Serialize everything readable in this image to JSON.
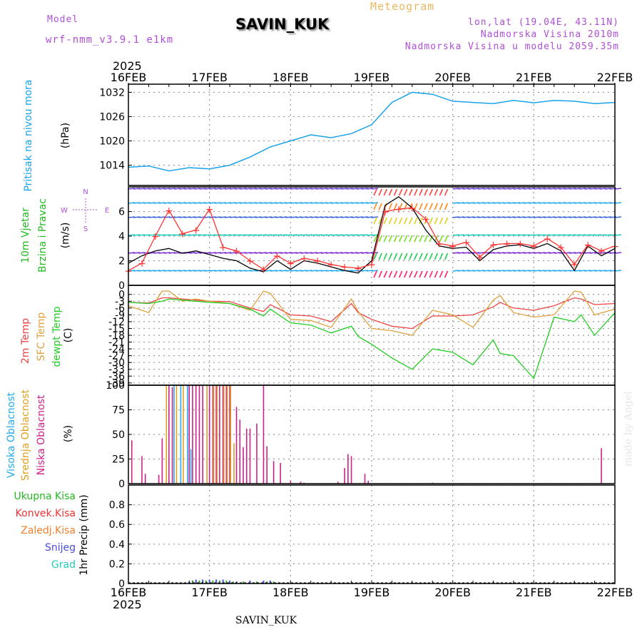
{
  "header": {
    "model_label": "Model",
    "model_version": "wrf-nmm_v3.9.1 e1km",
    "station": "SAVIN_KUK",
    "product": "Meteogram",
    "coords": "lon,lat (19.04E, 43.11N)",
    "elevation": "Nadmorska Visina 2010m",
    "model_elevation": "Nadmorska Visina u modelu 2059.35m",
    "year_top": "2025",
    "year_bottom": "2025"
  },
  "footer": {
    "station": "SAVIN_KUK",
    "made_by": "made by Angel"
  },
  "colors": {
    "pressure": "#1aa3ea",
    "wind_speed": "#000000",
    "gust": "#ff3333",
    "temp2m": "#ee4444",
    "sfc_temp": "#e0a040",
    "dewpt": "#22cc22",
    "high_cloud": "#22aaee",
    "mid_cloud": "#e0a020",
    "low_cloud": "#cc2288",
    "grid": "#999999"
  },
  "chart_data": [
    {
      "type": "line",
      "panel": "pressure",
      "x_dates": [
        "16FEB",
        "17FEB",
        "18FEB",
        "19FEB",
        "20FEB",
        "21FEB",
        "22FEB"
      ],
      "ylabel_colored": "Pritisak na nivou mora",
      "ylabel_unit": "(hPa)",
      "ylim": [
        1009,
        1034
      ],
      "yticks": [
        1014,
        1020,
        1026,
        1032
      ],
      "grid": true,
      "x_hours": [
        0,
        6,
        12,
        18,
        24,
        30,
        36,
        42,
        48,
        54,
        60,
        66,
        72,
        78,
        84,
        90,
        96,
        102,
        108,
        114,
        120,
        126,
        132,
        138,
        144
      ],
      "values": [
        1013.5,
        1013.8,
        1012.6,
        1013.4,
        1013.1,
        1014.0,
        1016.0,
        1018.5,
        1020.0,
        1021.5,
        1020.8,
        1021.8,
        1024.0,
        1029.5,
        1032.0,
        1031.5,
        1029.8,
        1029.5,
        1029.2,
        1030.0,
        1029.4,
        1030.0,
        1029.8,
        1029.2,
        1029.5
      ]
    },
    {
      "type": "line",
      "panel": "wind",
      "ylabel_colored_1": "10m Vjetar",
      "ylabel_colored_2": "Brzina i Pravac",
      "ylabel_unit": "(m/s)",
      "compass": [
        "N",
        "W",
        "E",
        "S"
      ],
      "ylim": [
        0,
        8
      ],
      "yticks": [
        0,
        2,
        4,
        6
      ],
      "grid": true,
      "series": [
        {
          "name": "",
          "x_hours": [
            0,
            4,
            8,
            12,
            16,
            20,
            24,
            28,
            32,
            36,
            40,
            44,
            48,
            52,
            56,
            60,
            64,
            68,
            72,
            76,
            80,
            84,
            88,
            92,
            96,
            100,
            104,
            108,
            112,
            116,
            120,
            124,
            128,
            132,
            136,
            140,
            144
          ],
          "values": [
            1.8,
            2.4,
            2.8,
            3.0,
            2.6,
            2.8,
            2.5,
            2.2,
            2.0,
            1.4,
            1.1,
            2.0,
            1.3,
            2.0,
            1.8,
            1.5,
            1.2,
            1.0,
            2.0,
            6.5,
            7.2,
            6.3,
            4.5,
            3.2,
            3.0,
            3.1,
            2.0,
            2.9,
            3.2,
            3.3,
            3.0,
            3.4,
            2.8,
            1.2,
            3.2,
            2.4,
            3.0
          ]
        },
        {
          "name": "",
          "x_hours": [
            0,
            4,
            8,
            12,
            16,
            20,
            24,
            28,
            32,
            36,
            40,
            44,
            48,
            52,
            56,
            60,
            64,
            68,
            72,
            76,
            80,
            84,
            88,
            92,
            96,
            100,
            104,
            108,
            112,
            116,
            120,
            124,
            128,
            132,
            136,
            140,
            144
          ],
          "values": [
            1.2,
            1.8,
            4.0,
            6.1,
            4.2,
            4.5,
            6.2,
            3.1,
            2.8,
            2.0,
            1.3,
            2.4,
            1.8,
            2.2,
            2.0,
            1.7,
            1.5,
            1.4,
            1.7,
            6.0,
            6.2,
            6.3,
            5.4,
            3.4,
            3.2,
            3.5,
            2.3,
            3.3,
            3.4,
            3.4,
            3.2,
            3.8,
            3.1,
            1.7,
            3.3,
            2.8,
            3.2
          ]
        }
      ]
    },
    {
      "type": "line",
      "panel": "temperature",
      "ylabel_colored_1": "2m Temp",
      "ylabel_colored_2": "SFC Temp",
      "ylabel_colored_3": "dewpt Temp",
      "ylabel_unit": "(C)",
      "ylim": [
        -40,
        4
      ],
      "yticks": [
        0,
        -3,
        -6,
        -9,
        -12,
        -15,
        -18,
        -21,
        -24,
        -27,
        -30,
        -33,
        -36,
        -39
      ],
      "yticklabels": [
        "0",
        "-3",
        "-6",
        "-9",
        "-12",
        "-15",
        "-18",
        "-21",
        "-24",
        "-27",
        "-30",
        "-33",
        "-36",
        "-39"
      ],
      "grid": true,
      "x_hours": [
        0,
        6,
        10,
        12,
        16,
        20,
        24,
        30,
        36,
        40,
        42,
        48,
        54,
        60,
        66,
        68,
        72,
        78,
        84,
        90,
        96,
        102,
        108,
        110,
        114,
        120,
        126,
        132,
        134,
        138,
        144
      ],
      "series": [
        {
          "name": "2m Temp",
          "values": [
            -3.5,
            -3.8,
            -1.5,
            -1.5,
            -2.0,
            -2.5,
            -3.0,
            -3.2,
            -6.0,
            -7.5,
            -4.5,
            -9.0,
            -9.5,
            -12.0,
            -4.0,
            -8.0,
            -11.0,
            -14.0,
            -15.0,
            -9.5,
            -9.5,
            -9.0,
            -5.5,
            -3.5,
            -6.0,
            -7.0,
            -5.0,
            -1.5,
            -2.0,
            -4.5,
            -4.0
          ]
        },
        {
          "name": "SFC Temp",
          "values": [
            -5.0,
            -8.0,
            1.5,
            1.5,
            -3.0,
            -2.0,
            -3.0,
            -4.0,
            -7.0,
            1.5,
            0.5,
            -11.0,
            -11.5,
            -14.5,
            -2.0,
            -7.5,
            -15.0,
            -16.0,
            -18.0,
            -7.0,
            -9.0,
            -14.5,
            -2.5,
            -0.5,
            -8.0,
            -10.0,
            -9.0,
            1.5,
            1.0,
            -9.0,
            -6.5
          ]
        },
        {
          "name": "dewpt Temp",
          "values": [
            -3.5,
            -4.0,
            -3.0,
            -2.0,
            -2.5,
            -3.0,
            -3.5,
            -4.0,
            -6.5,
            -9.5,
            -6.5,
            -12.5,
            -13.5,
            -17.0,
            -14.0,
            -18.5,
            -22.0,
            -28.0,
            -33.0,
            -24.0,
            -25.5,
            -31.0,
            -20.0,
            -26.0,
            -27.0,
            -37.0,
            -10.0,
            -12.0,
            -9.0,
            -18.0,
            -8.0
          ]
        }
      ]
    },
    {
      "type": "bar",
      "panel": "cloud",
      "ylabel_colored_1": "Visoka Oblacnost",
      "ylabel_colored_2": "Srednja Oblacnost",
      "ylabel_colored_3": "Niska Oblacnost",
      "ylabel_unit": "(%)",
      "ylim": [
        0,
        100
      ],
      "yticks": [
        0,
        25,
        50,
        75,
        100
      ],
      "grid": true,
      "series": [
        {
          "name": "Niska Oblacnost",
          "x_hours": [
            1,
            4,
            5,
            9,
            10,
            12,
            13,
            18,
            19,
            20,
            21,
            22,
            24,
            25,
            26,
            27,
            28,
            29,
            30,
            32,
            33,
            34,
            35,
            36,
            38,
            40,
            41,
            43,
            45,
            48,
            51,
            52,
            62,
            64,
            65,
            66,
            70,
            71,
            90,
            140
          ],
          "values": [
            44,
            28,
            10,
            9,
            46,
            100,
            98,
            100,
            100,
            100,
            100,
            100,
            100,
            100,
            100,
            100,
            100,
            100,
            100,
            78,
            65,
            37,
            56,
            56,
            61,
            100,
            38,
            23,
            21,
            3,
            2,
            1,
            2,
            16,
            30,
            28,
            10,
            3,
            1,
            36
          ]
        },
        {
          "name": "Srednja Oblacnost",
          "x_hours": [
            11,
            14,
            16,
            23,
            25,
            26,
            28,
            29,
            30,
            31
          ],
          "values": [
            100,
            100,
            100,
            100,
            100,
            100,
            100,
            100,
            100,
            41
          ]
        },
        {
          "name": "Visoka Oblacnost",
          "x_hours": [
            13,
            15,
            17,
            18
          ],
          "values": [
            100,
            100,
            100,
            35
          ]
        }
      ]
    },
    {
      "type": "bar",
      "panel": "precip",
      "legend": [
        "Ukupna Kisa",
        "Konvek.Kisa",
        "Zaledj.Kisa",
        "Snijeg",
        "Grad"
      ],
      "ylabel_colored": "1hr Precip",
      "ylabel_unit": "(mm)",
      "ylim": [
        0,
        1.0
      ],
      "yticks": [
        0,
        0.2,
        0.4,
        0.6,
        0.8
      ],
      "grid": true,
      "x_hours": [
        18,
        19,
        20,
        21,
        22,
        23,
        24,
        25,
        26,
        27,
        28,
        29,
        30,
        31,
        32,
        34,
        36,
        38,
        40,
        41,
        42,
        43
      ],
      "values": [
        0.02,
        0.03,
        0.04,
        0.03,
        0.04,
        0.03,
        0.04,
        0.03,
        0.04,
        0.03,
        0.04,
        0.03,
        0.03,
        0.02,
        0.02,
        0.02,
        0.03,
        0.02,
        0.03,
        0.02,
        0.03,
        0.02
      ]
    }
  ]
}
